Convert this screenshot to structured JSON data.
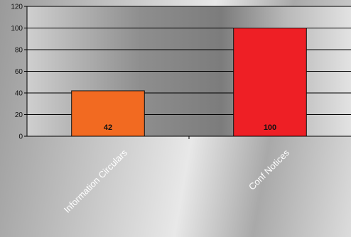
{
  "chart_data": {
    "type": "bar",
    "categories": [
      "Information Circulars",
      "Conf Notices"
    ],
    "values": [
      42,
      100
    ],
    "data_labels": [
      "42",
      "100"
    ],
    "colors": [
      "#f26a21",
      "#ee1f25"
    ],
    "ylim": [
      0,
      120
    ],
    "yticks": [
      0,
      20,
      40,
      60,
      80,
      100,
      120
    ],
    "ytick_labels": [
      "0",
      "20",
      "40",
      "60",
      "80",
      "100",
      "120"
    ],
    "grid": true,
    "legend": "none"
  }
}
